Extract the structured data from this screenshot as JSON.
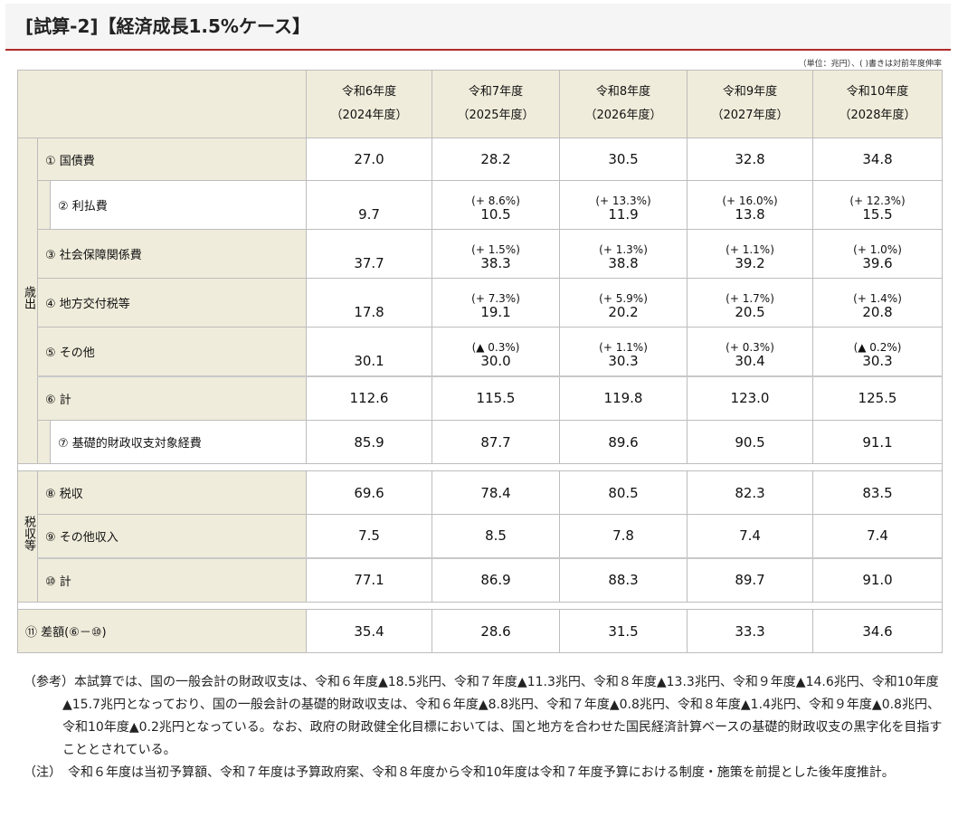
{
  "title": "[試算-2]【経済成長1.5%ケース】",
  "unit_note": "（単位：兆円）、( )書きは対前年度伸率",
  "years": [
    {
      "label": "令和6年度",
      "sub": "（2024年度）"
    },
    {
      "label": "令和7年度",
      "sub": "（2025年度）"
    },
    {
      "label": "令和8年度",
      "sub": "（2026年度）"
    },
    {
      "label": "令和9年度",
      "sub": "（2027年度）"
    },
    {
      "label": "令和10年度",
      "sub": "（2028年度）"
    }
  ],
  "groups": {
    "expenditure": "歳出",
    "revenue": "税収等"
  },
  "rows": [
    {
      "label": "① 国債費",
      "values": [
        "27.0",
        "28.2",
        "30.5",
        "32.8",
        "34.8"
      ],
      "pct": [
        "",
        "",
        "",
        "",
        ""
      ]
    },
    {
      "label": "② 利払費",
      "values": [
        "9.7",
        "10.5",
        "11.9",
        "13.8",
        "15.5"
      ],
      "pct": [
        "",
        "(+ 8.6%)",
        "(+ 13.3%)",
        "(+ 16.0%)",
        "(+ 12.3%)"
      ]
    },
    {
      "label": "③ 社会保障関係費",
      "values": [
        "37.7",
        "38.3",
        "38.8",
        "39.2",
        "39.6"
      ],
      "pct": [
        "",
        "(+ 1.5%)",
        "(+ 1.3%)",
        "(+ 1.1%)",
        "(+ 1.0%)"
      ]
    },
    {
      "label": "④ 地方交付税等",
      "values": [
        "17.8",
        "19.1",
        "20.2",
        "20.5",
        "20.8"
      ],
      "pct": [
        "",
        "(+ 7.3%)",
        "(+ 5.9%)",
        "(+ 1.7%)",
        "(+ 1.4%)"
      ]
    },
    {
      "label": "⑤ その他",
      "values": [
        "30.1",
        "30.0",
        "30.3",
        "30.4",
        "30.3"
      ],
      "pct": [
        "",
        "(▲ 0.3%)",
        "(+ 1.1%)",
        "(+ 0.3%)",
        "(▲ 0.2%)"
      ]
    },
    {
      "label": "⑥ 計",
      "values": [
        "112.6",
        "115.5",
        "119.8",
        "123.0",
        "125.5"
      ],
      "pct": [
        "",
        "",
        "",
        "",
        ""
      ]
    },
    {
      "label": "⑦ 基礎的財政収支対象経費",
      "values": [
        "85.9",
        "87.7",
        "89.6",
        "90.5",
        "91.1"
      ],
      "pct": [
        "",
        "",
        "",
        "",
        ""
      ]
    },
    {
      "label": "⑧ 税収",
      "values": [
        "69.6",
        "78.4",
        "80.5",
        "82.3",
        "83.5"
      ],
      "pct": [
        "",
        "",
        "",
        "",
        ""
      ]
    },
    {
      "label": "⑨ その他収入",
      "values": [
        "7.5",
        "8.5",
        "7.8",
        "7.4",
        "7.4"
      ],
      "pct": [
        "",
        "",
        "",
        "",
        ""
      ]
    },
    {
      "label": "⑩ 計",
      "values": [
        "77.1",
        "86.9",
        "88.3",
        "89.7",
        "91.0"
      ],
      "pct": [
        "",
        "",
        "",
        "",
        ""
      ]
    },
    {
      "label": "⑪ 差額(⑥－⑩)",
      "values": [
        "35.4",
        "28.6",
        "31.5",
        "33.3",
        "34.6"
      ],
      "pct": [
        "",
        "",
        "",
        "",
        ""
      ]
    }
  ],
  "notes": {
    "ref": "（参考）本試算では、国の一般会計の財政収支は、令和６年度▲18.5兆円、令和７年度▲11.3兆円、令和８年度▲13.3兆円、令和９年度▲14.6兆円、令和10年度▲15.7兆円となっており、国の一般会計の基礎的財政収支は、令和６年度▲8.8兆円、令和７年度▲0.8兆円、令和８年度▲1.4兆円、令和９年度▲0.8兆円、令和10年度▲0.2兆円となっている。なお、政府の財政健全化目標においては、国と地方を合わせた国民経済計算ベースの基礎的財政収支の黒字化を目指すこととされている。",
    "note": "（注）　令和６年度は当初予算額、令和７年度は予算政府案、令和８年度から令和10年度は令和７年度予算における制度・施策を前提とした後年度推計。"
  }
}
